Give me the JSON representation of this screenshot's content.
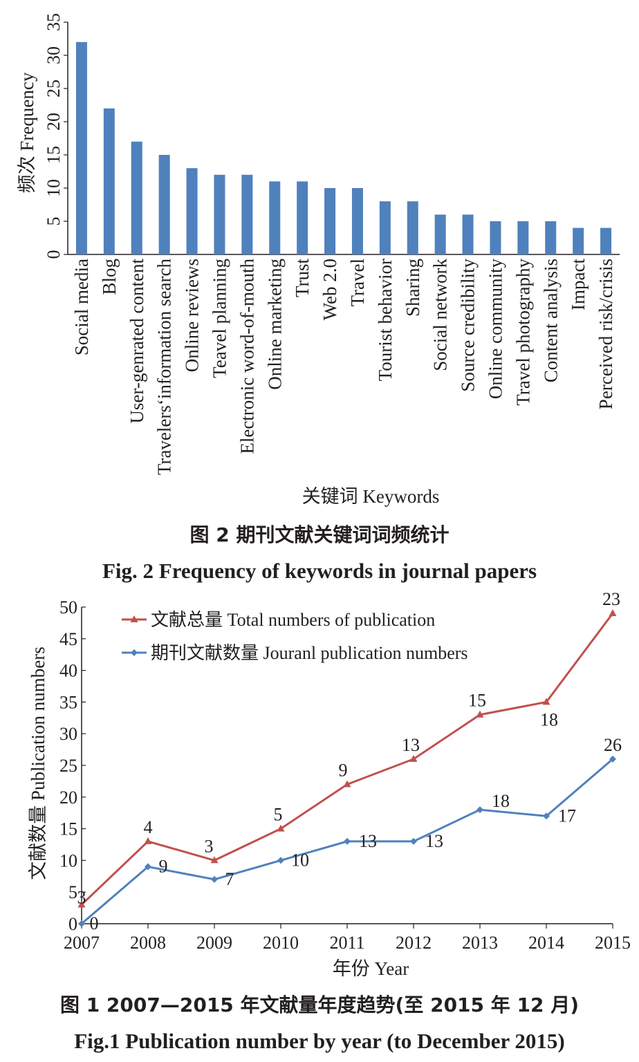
{
  "chart_data": [
    {
      "type": "bar",
      "categories": [
        "Social media",
        "Blog",
        "User-genrated content",
        "Travelers‘information search",
        "Online reviews",
        "Teavel planning",
        "Electronic word-of-mouth",
        "Online marketing",
        "Trust",
        "Web 2.0",
        "Travel",
        "Tourist behavior",
        "Sharing",
        "Social network",
        "Source credibility",
        "Online community",
        "Travel photography",
        "Content analysis",
        "Impact",
        "Perceived risk/crisis"
      ],
      "values": [
        32,
        22,
        17,
        15,
        13,
        12,
        12,
        11,
        11,
        10,
        10,
        8,
        8,
        6,
        6,
        5,
        5,
        5,
        4,
        4
      ],
      "ylabel": "频次 Frequency",
      "xlabel": "关键词 Keywords",
      "ylim": [
        0,
        35
      ],
      "yticks": [
        "0",
        "5",
        "10",
        "15",
        "20",
        "25",
        "30",
        "35"
      ],
      "bar_color": "#4f81bd",
      "grid": false
    },
    {
      "type": "line",
      "x": [
        "2007",
        "2008",
        "2009",
        "2010",
        "2011",
        "2012",
        "2013",
        "2014",
        "2015"
      ],
      "series": [
        {
          "name": "文献总量 Total numbers of publication",
          "color": "#c0504d",
          "marker": "triangle",
          "values": [
            3,
            13,
            10,
            15,
            22,
            26,
            33,
            35,
            49
          ],
          "labels": [
            "3",
            "4",
            "3",
            "5",
            "9",
            "13",
            "15",
            "18",
            "23"
          ]
        },
        {
          "name": "期刊文献数量 Jouranl publication numbers",
          "color": "#4f81bd",
          "marker": "diamond",
          "values": [
            0,
            9,
            7,
            10,
            13,
            13,
            18,
            17,
            26
          ],
          "labels": [
            "0",
            "9",
            "7",
            "10",
            "13",
            "13",
            "18",
            "17",
            "26"
          ]
        }
      ],
      "ylabel": "文献数量 Publication numbers",
      "xlabel": "年份 Year",
      "ylim": [
        0,
        50
      ],
      "yticks": [
        "0",
        "5",
        "10",
        "15",
        "20",
        "25",
        "30",
        "35",
        "40",
        "45",
        "50"
      ],
      "legend": "top-left",
      "grid": false
    }
  ],
  "captions": {
    "fig2_cn": "图 2   期刊文献关键词词频统计",
    "fig2_en": "Fig. 2   Frequency of keywords in journal papers",
    "fig1_cn": "图 1   2007—2015 年文献量年度趋势(至 2015 年 12 月)",
    "fig1_en": "Fig.1   Publication number by year (to December 2015)"
  }
}
